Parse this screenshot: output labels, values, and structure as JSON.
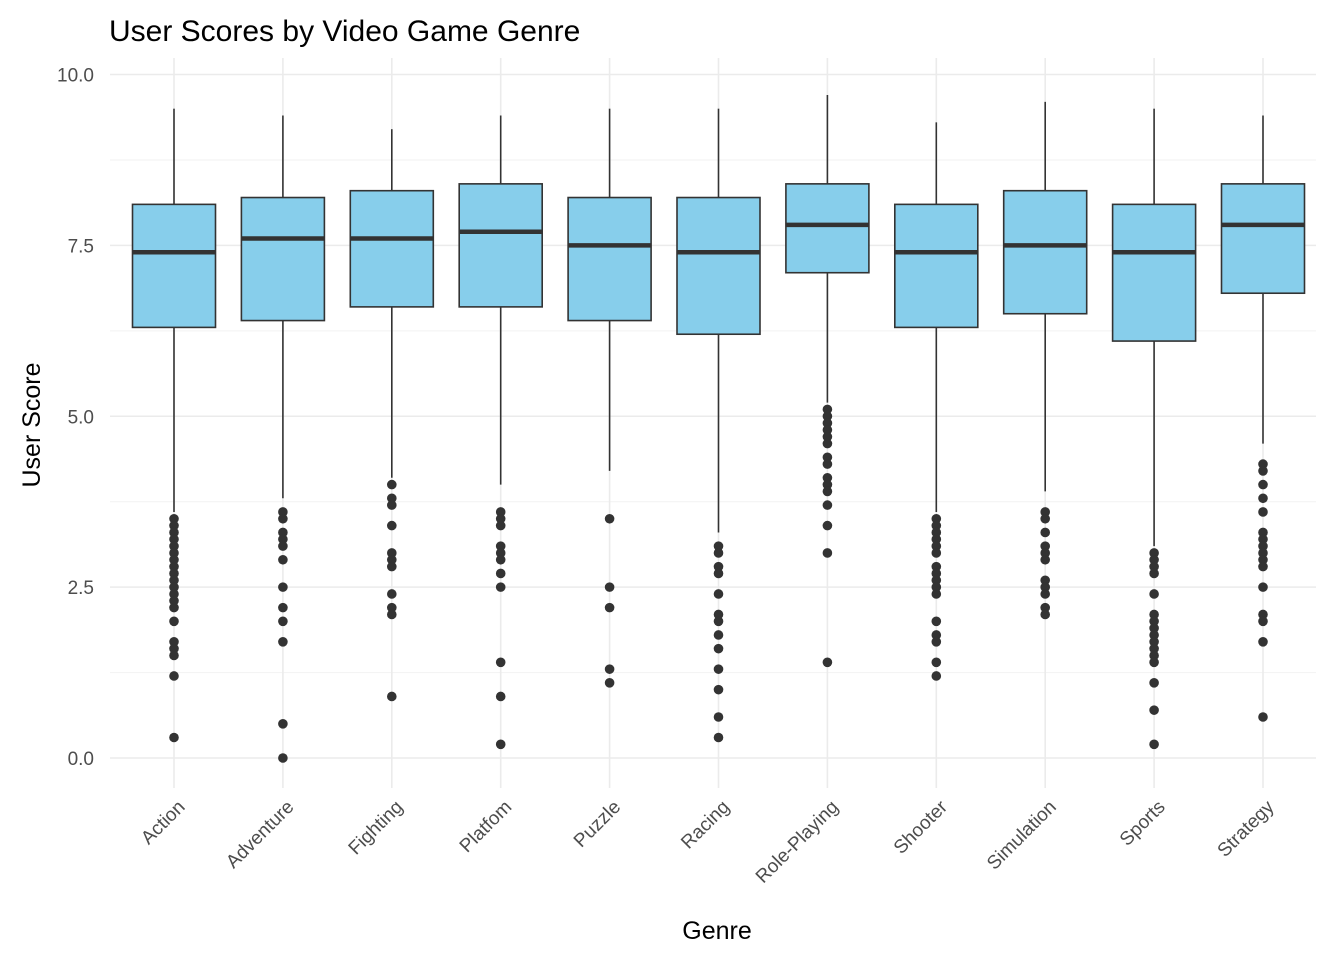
{
  "chart_data": {
    "type": "boxplot",
    "title": "User Scores by Video Game Genre",
    "xlabel": "Genre",
    "ylabel": "User Score",
    "ylim": [
      -0.4,
      10.5
    ],
    "yticks": [
      0.0,
      2.5,
      5.0,
      7.5,
      10.0
    ],
    "ytick_labels": [
      "0.0",
      "2.5",
      "5.0",
      "7.5",
      "10.0"
    ],
    "grid": true,
    "box_color": "#87CEEB",
    "line_color": "#333333",
    "categories": [
      "Action",
      "Adventure",
      "Fighting",
      "Platfom",
      "Puzzle",
      "Racing",
      "Role-Playing",
      "Shooter",
      "Simulation",
      "Sports",
      "Strategy"
    ],
    "series": [
      {
        "category": "Action",
        "whisker_low": 3.6,
        "q1": 6.3,
        "median": 7.4,
        "q3": 8.1,
        "whisker_high": 9.5,
        "outliers": [
          3.5,
          3.4,
          3.3,
          3.2,
          3.1,
          3.0,
          2.9,
          2.8,
          2.7,
          2.6,
          2.5,
          2.4,
          2.3,
          2.2,
          2.0,
          1.7,
          1.6,
          1.5,
          1.2,
          0.3
        ]
      },
      {
        "category": "Adventure",
        "whisker_low": 3.8,
        "q1": 6.4,
        "median": 7.6,
        "q3": 8.2,
        "whisker_high": 9.4,
        "outliers": [
          3.6,
          3.5,
          3.3,
          3.2,
          3.1,
          2.9,
          2.5,
          2.2,
          2.0,
          1.7,
          0.5,
          0.0
        ]
      },
      {
        "category": "Fighting",
        "whisker_low": 4.1,
        "q1": 6.6,
        "median": 7.6,
        "q3": 8.3,
        "whisker_high": 9.2,
        "outliers": [
          4.0,
          3.8,
          3.7,
          3.4,
          3.0,
          2.9,
          2.8,
          2.4,
          2.2,
          2.1,
          0.9
        ]
      },
      {
        "category": "Platfom",
        "whisker_low": 4.0,
        "q1": 6.6,
        "median": 7.7,
        "q3": 8.4,
        "whisker_high": 9.4,
        "outliers": [
          3.6,
          3.5,
          3.4,
          3.1,
          3.0,
          2.9,
          2.7,
          2.5,
          1.4,
          0.9,
          0.2
        ]
      },
      {
        "category": "Puzzle",
        "whisker_low": 4.2,
        "q1": 6.4,
        "median": 7.5,
        "q3": 8.2,
        "whisker_high": 9.5,
        "outliers": [
          3.5,
          2.5,
          2.2,
          1.3,
          1.1
        ]
      },
      {
        "category": "Racing",
        "whisker_low": 3.3,
        "q1": 6.2,
        "median": 7.4,
        "q3": 8.2,
        "whisker_high": 9.5,
        "outliers": [
          3.1,
          3.0,
          2.8,
          2.7,
          2.4,
          2.1,
          2.0,
          1.8,
          1.6,
          1.3,
          1.0,
          0.6,
          0.3
        ]
      },
      {
        "category": "Role-Playing",
        "whisker_low": 5.2,
        "q1": 7.1,
        "median": 7.8,
        "q3": 8.4,
        "whisker_high": 9.7,
        "outliers": [
          5.1,
          5.0,
          4.9,
          4.8,
          4.7,
          4.6,
          4.4,
          4.3,
          4.1,
          4.0,
          3.9,
          3.7,
          3.4,
          3.0,
          1.4
        ]
      },
      {
        "category": "Shooter",
        "whisker_low": 3.6,
        "q1": 6.3,
        "median": 7.4,
        "q3": 8.1,
        "whisker_high": 9.3,
        "outliers": [
          3.5,
          3.4,
          3.3,
          3.2,
          3.1,
          3.0,
          2.8,
          2.7,
          2.6,
          2.5,
          2.4,
          2.0,
          1.8,
          1.7,
          1.4,
          1.2
        ]
      },
      {
        "category": "Simulation",
        "whisker_low": 3.9,
        "q1": 6.5,
        "median": 7.5,
        "q3": 8.3,
        "whisker_high": 9.6,
        "outliers": [
          3.6,
          3.5,
          3.3,
          3.1,
          3.0,
          2.9,
          2.6,
          2.5,
          2.4,
          2.2,
          2.1
        ]
      },
      {
        "category": "Sports",
        "whisker_low": 3.1,
        "q1": 6.1,
        "median": 7.4,
        "q3": 8.1,
        "whisker_high": 9.5,
        "outliers": [
          3.0,
          2.9,
          2.8,
          2.7,
          2.4,
          2.1,
          2.0,
          1.9,
          1.8,
          1.7,
          1.6,
          1.5,
          1.4,
          1.1,
          0.7,
          0.2
        ]
      },
      {
        "category": "Strategy",
        "whisker_low": 4.6,
        "q1": 6.8,
        "median": 7.8,
        "q3": 8.4,
        "whisker_high": 9.4,
        "outliers": [
          4.3,
          4.2,
          4.0,
          3.8,
          3.6,
          3.3,
          3.2,
          3.1,
          3.0,
          2.9,
          2.8,
          2.5,
          2.1,
          2.0,
          1.7,
          0.6
        ]
      }
    ]
  }
}
